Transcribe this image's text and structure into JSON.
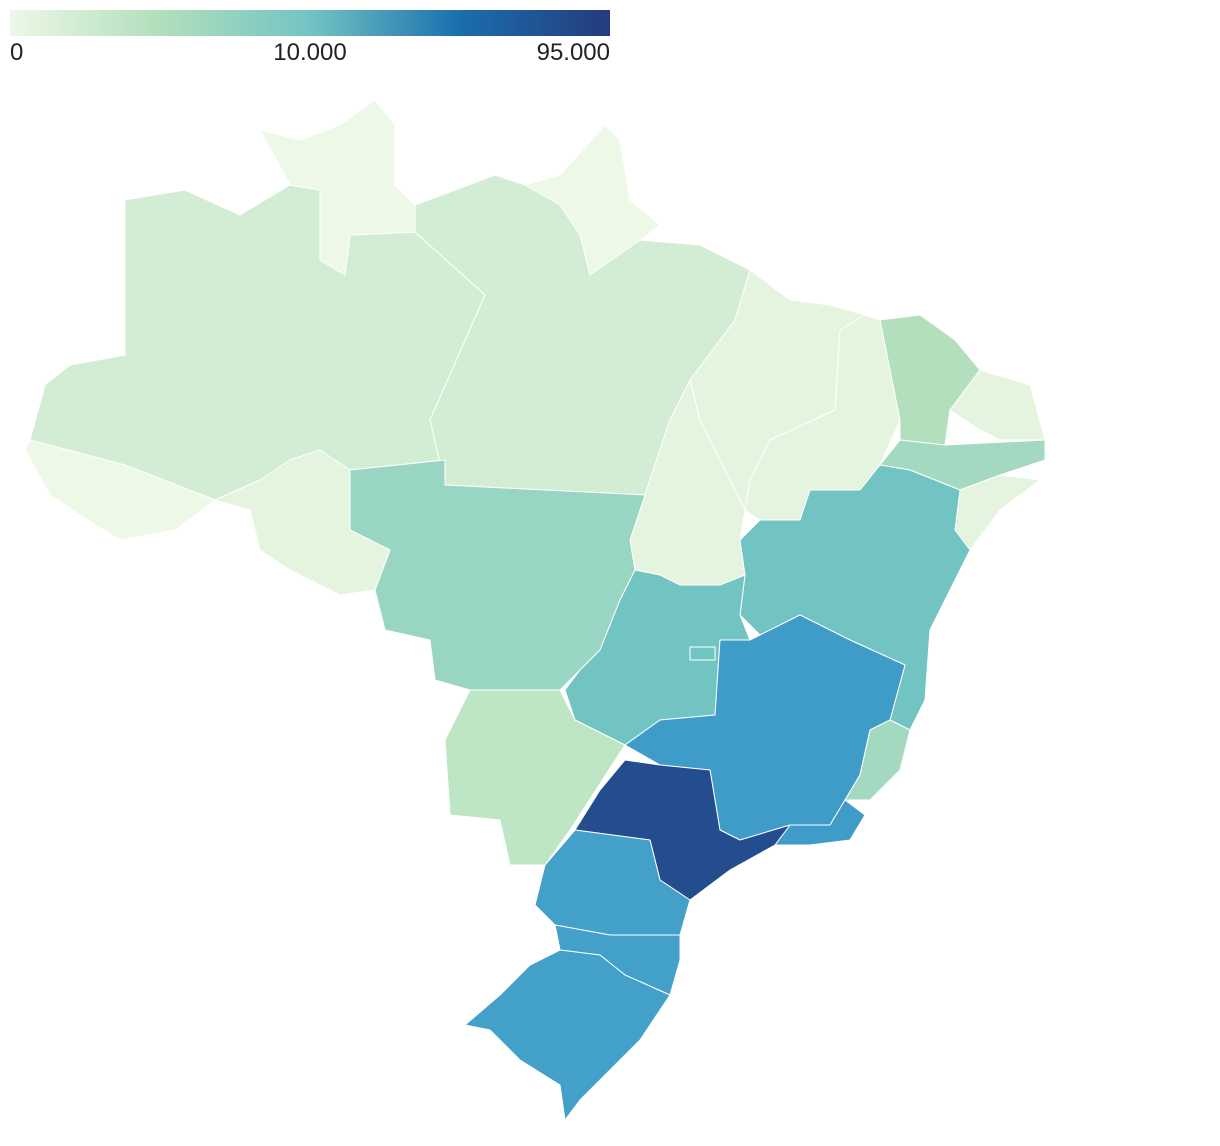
{
  "legend": {
    "colors": [
      "#edf8e6",
      "#b2dfbc",
      "#72c4c3",
      "#1a6eae",
      "#253b7d"
    ],
    "ticks": [
      {
        "value": 0,
        "label": "0"
      },
      {
        "value": 10000,
        "label": "10.000"
      },
      {
        "value": 95000,
        "label": "95.000"
      }
    ]
  }
}
